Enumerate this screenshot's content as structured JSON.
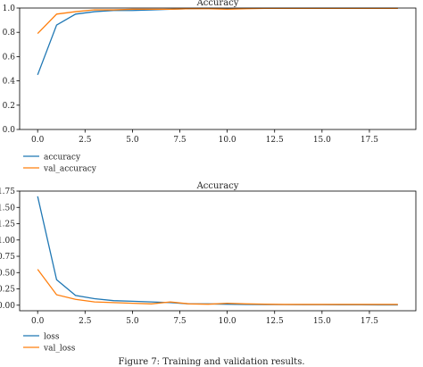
{
  "caption": "Figure 7: Training and validation results.",
  "colors": {
    "blue": "#1f77b4",
    "orange": "#ff7f0e"
  },
  "chart_data": [
    {
      "type": "line",
      "title": "Accuracy",
      "xlabel": "",
      "ylabel": "",
      "xlim": [
        -0.95,
        19.95
      ],
      "ylim": [
        0.0,
        1.0
      ],
      "grid": false,
      "legend": "below-left",
      "x_ticks": [
        "0.0",
        "2.5",
        "5.0",
        "7.5",
        "10.0",
        "12.5",
        "15.0",
        "17.5"
      ],
      "y_ticks": [
        "0.0",
        "0.2",
        "0.4",
        "0.6",
        "0.8",
        "1.0"
      ],
      "x": [
        0,
        1,
        2,
        3,
        4,
        5,
        6,
        7,
        8,
        9,
        10,
        11,
        12,
        13,
        14,
        15,
        16,
        17,
        18,
        19
      ],
      "series": [
        {
          "name": "accuracy",
          "color": "#1f77b4",
          "values": [
            0.45,
            0.86,
            0.95,
            0.97,
            0.98,
            0.98,
            0.985,
            0.99,
            0.995,
            0.997,
            0.995,
            0.997,
            0.998,
            0.998,
            0.998,
            0.999,
            0.999,
            0.999,
            0.999,
            0.999
          ]
        },
        {
          "name": "val_accuracy",
          "color": "#ff7f0e",
          "values": [
            0.79,
            0.95,
            0.97,
            0.985,
            0.985,
            0.99,
            0.99,
            0.99,
            0.995,
            0.995,
            0.99,
            0.995,
            0.997,
            0.997,
            0.997,
            0.997,
            0.997,
            0.997,
            0.997,
            0.997
          ]
        }
      ]
    },
    {
      "type": "line",
      "title": "Accuracy",
      "xlabel": "",
      "ylabel": "",
      "xlim": [
        -0.95,
        19.95
      ],
      "ylim": [
        -0.085,
        1.75
      ],
      "grid": false,
      "legend": "below-left",
      "x_ticks": [
        "0.0",
        "2.5",
        "5.0",
        "7.5",
        "10.0",
        "12.5",
        "15.0",
        "17.5"
      ],
      "y_ticks": [
        "0.00",
        "0.25",
        "0.50",
        "0.75",
        "1.00",
        "1.25",
        "1.50",
        "1.75"
      ],
      "x": [
        0,
        1,
        2,
        3,
        4,
        5,
        6,
        7,
        8,
        9,
        10,
        11,
        12,
        13,
        14,
        15,
        16,
        17,
        18,
        19
      ],
      "series": [
        {
          "name": "loss",
          "color": "#1f77b4",
          "values": [
            1.67,
            0.39,
            0.15,
            0.1,
            0.07,
            0.06,
            0.05,
            0.04,
            0.02,
            0.02,
            0.015,
            0.012,
            0.01,
            0.009,
            0.008,
            0.007,
            0.006,
            0.006,
            0.005,
            0.005
          ]
        },
        {
          "name": "val_loss",
          "color": "#ff7f0e",
          "values": [
            0.55,
            0.16,
            0.09,
            0.05,
            0.04,
            0.03,
            0.02,
            0.05,
            0.02,
            0.015,
            0.03,
            0.02,
            0.015,
            0.012,
            0.012,
            0.012,
            0.012,
            0.012,
            0.012,
            0.012
          ]
        }
      ]
    }
  ]
}
